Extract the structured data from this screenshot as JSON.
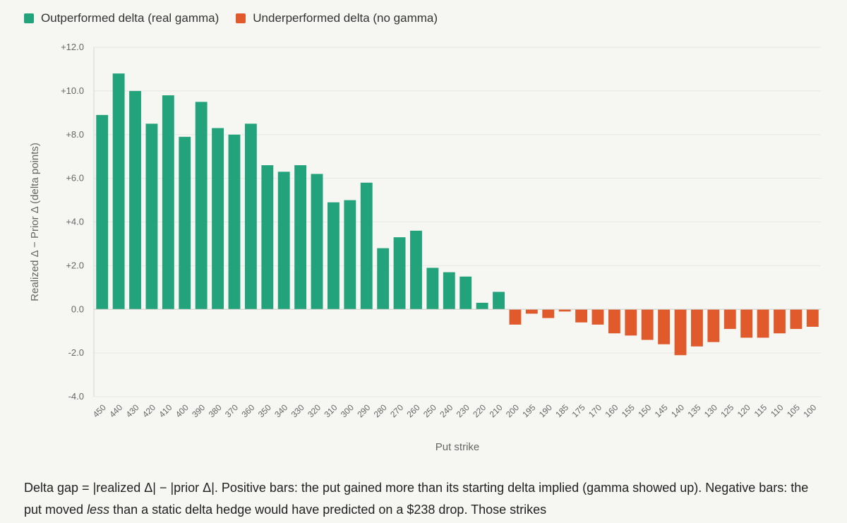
{
  "chart_data": {
    "type": "bar",
    "categories": [
      "450",
      "440",
      "430",
      "420",
      "410",
      "400",
      "390",
      "380",
      "370",
      "360",
      "350",
      "340",
      "330",
      "320",
      "310",
      "300",
      "290",
      "280",
      "270",
      "260",
      "250",
      "240",
      "230",
      "220",
      "210",
      "200",
      "195",
      "190",
      "185",
      "175",
      "170",
      "160",
      "155",
      "150",
      "145",
      "140",
      "135",
      "130",
      "125",
      "120",
      "115",
      "110",
      "105",
      "100"
    ],
    "series": [
      {
        "name": "Delta gap",
        "values": [
          8.9,
          10.8,
          10.0,
          8.5,
          9.8,
          7.9,
          9.5,
          8.3,
          8.0,
          8.5,
          6.6,
          6.3,
          6.6,
          6.2,
          4.9,
          5.0,
          5.8,
          2.8,
          3.3,
          3.6,
          1.9,
          1.7,
          1.5,
          0.3,
          0.8,
          -0.7,
          -0.2,
          -0.4,
          -0.1,
          -0.6,
          -0.7,
          -1.1,
          -1.2,
          -1.4,
          -1.6,
          -2.1,
          -1.7,
          -1.5,
          -0.9,
          -1.3,
          -1.3,
          -1.1,
          -0.9,
          -0.8
        ]
      }
    ],
    "legend": [
      {
        "label": "Outperformed delta (real gamma)",
        "color": "#22a37c"
      },
      {
        "label": "Underperformed delta (no gamma)",
        "color": "#e05a2b"
      }
    ],
    "xlabel": "Put strike",
    "ylabel": "Realized Δ − Prior Δ  (delta points)",
    "ylim": [
      -4.0,
      12.0
    ],
    "yticks": [
      -4.0,
      -2.0,
      0.0,
      2.0,
      4.0,
      6.0,
      8.0,
      10.0,
      12.0
    ],
    "ytick_labels": [
      "-4.0",
      "-2.0",
      "0.0",
      "+2.0",
      "+4.0",
      "+6.0",
      "+8.0",
      "+10.0",
      "+12.0"
    ],
    "grid": true,
    "legend_position": "top-left",
    "positive_color": "#22a37c",
    "negative_color": "#e05a2b"
  },
  "caption": {
    "part1": "Delta gap = |realized Δ| − |prior Δ|. Positive bars: the put gained more than its starting delta implied (gamma showed up). Negative bars: the put moved ",
    "italic": "less",
    "part2": " than a static delta hedge would have predicted on a $238 drop. Those strikes"
  }
}
